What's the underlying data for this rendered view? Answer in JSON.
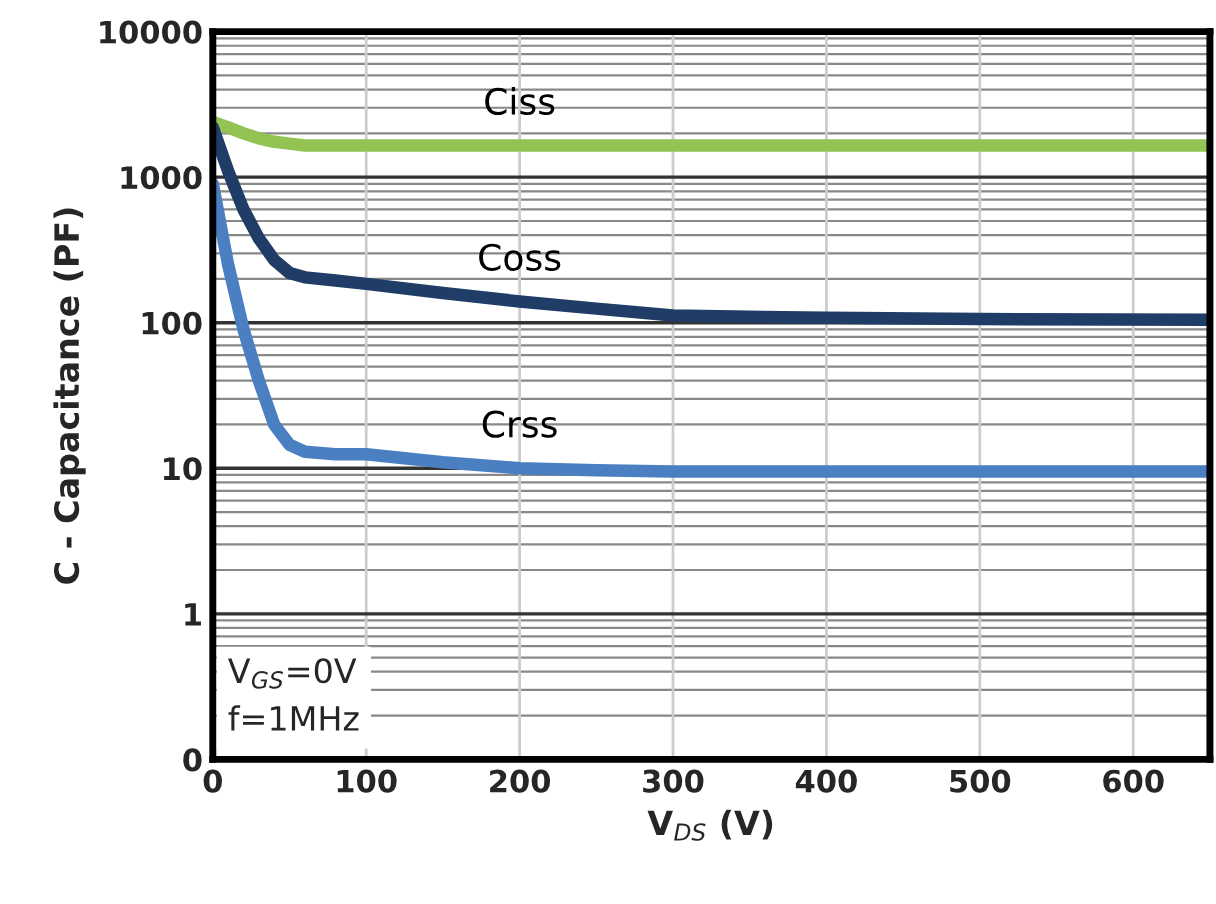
{
  "chart_data": {
    "type": "line",
    "xlabel": "V$_{DS}$ (V)",
    "ylabel": "C - Capacitance (PF)",
    "x": [
      0,
      10,
      20,
      30,
      40,
      50,
      60,
      80,
      100,
      150,
      200,
      250,
      300,
      400,
      500,
      650
    ],
    "series": [
      {
        "name": "Ciss",
        "color": "#92c353",
        "values": [
          2400,
          2200,
          2000,
          1850,
          1750,
          1700,
          1650,
          1650,
          1650,
          1650,
          1650,
          1650,
          1650,
          1650,
          1650,
          1650
        ]
      },
      {
        "name": "Coss",
        "color": "#1f3d66",
        "values": [
          2200,
          1100,
          600,
          380,
          270,
          220,
          205,
          195,
          185,
          160,
          140,
          125,
          112,
          108,
          106,
          105
        ]
      },
      {
        "name": "Crss",
        "color": "#4a7fc1",
        "values": [
          900,
          250,
          90,
          40,
          20,
          14.5,
          13,
          12.5,
          12.5,
          11,
          10,
          9.7,
          9.5,
          9.5,
          9.5,
          9.5
        ]
      }
    ],
    "log": "y",
    "xlim": [
      0,
      650
    ],
    "ylim": [
      0.1,
      10000
    ],
    "xticks": [
      0,
      100,
      200,
      300,
      400,
      500,
      600
    ],
    "yticks": [
      {
        "value": 0.1,
        "label": "0"
      },
      1,
      10,
      100,
      1000,
      10000
    ],
    "grid": true,
    "annotations": [
      "V$_{GS}$=0V\nf=1MHz"
    ]
  }
}
